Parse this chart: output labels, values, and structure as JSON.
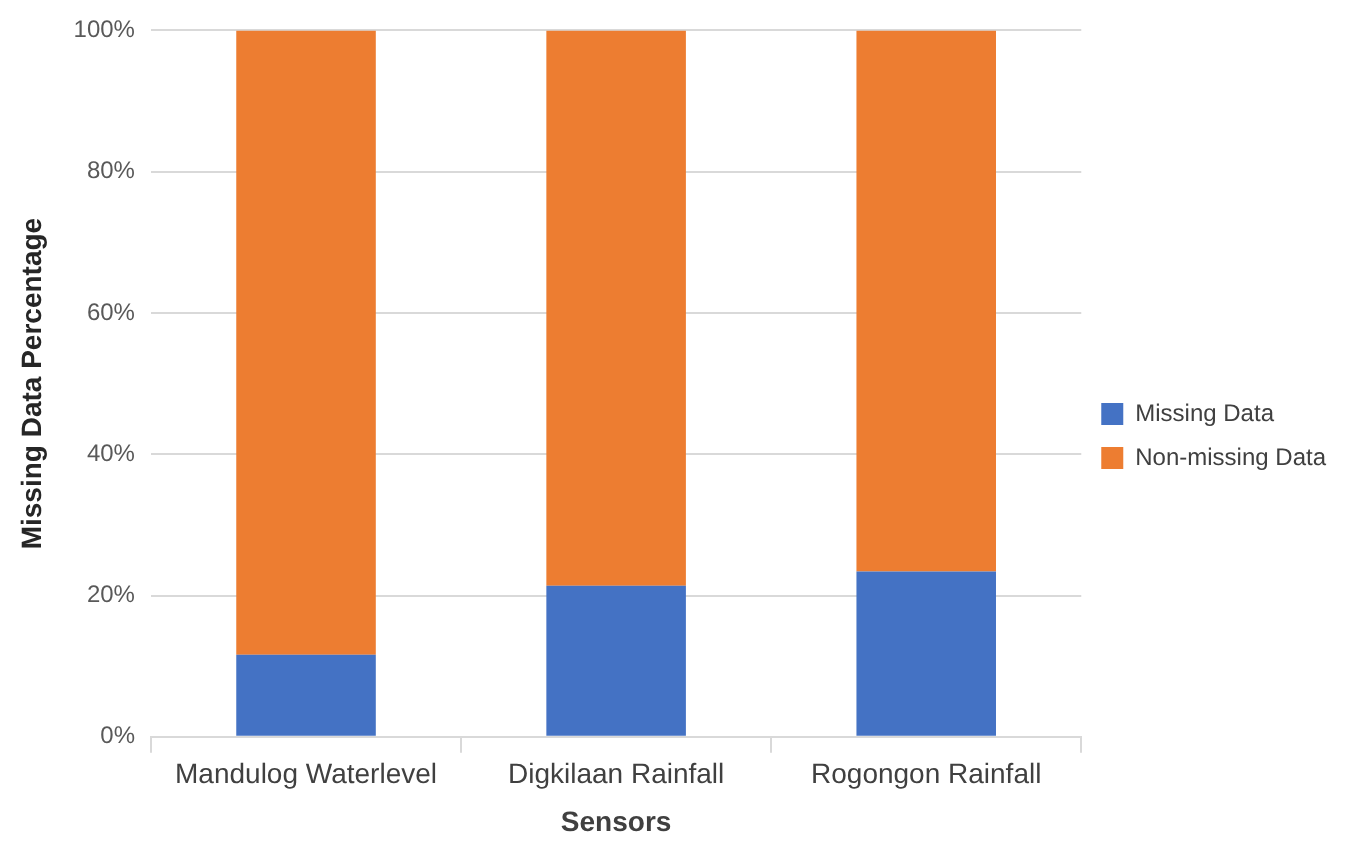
{
  "chart_data": {
    "type": "bar",
    "stacked": true,
    "xlabel": "Sensors",
    "ylabel": "Missing Data Percentage",
    "categories": [
      "Mandulog Waterlevel",
      "Digkilaan Rainfall",
      "Rogongon Rainfall"
    ],
    "series": [
      {
        "name": "Missing Data",
        "color": "#4472c4",
        "values": [
          11.6,
          21.4,
          23.4
        ]
      },
      {
        "name": "Non-missing Data",
        "color": "#ed7d31",
        "values": [
          88.4,
          78.6,
          76.6
        ]
      }
    ],
    "ylim": [
      0,
      100
    ],
    "yticks": [
      {
        "value": 0,
        "label": "0%"
      },
      {
        "value": 20,
        "label": "20%"
      },
      {
        "value": 40,
        "label": "40%"
      },
      {
        "value": 60,
        "label": "60%"
      },
      {
        "value": 80,
        "label": "80%"
      },
      {
        "value": 100,
        "label": "100%"
      }
    ],
    "grid": "y",
    "legend": "right"
  }
}
